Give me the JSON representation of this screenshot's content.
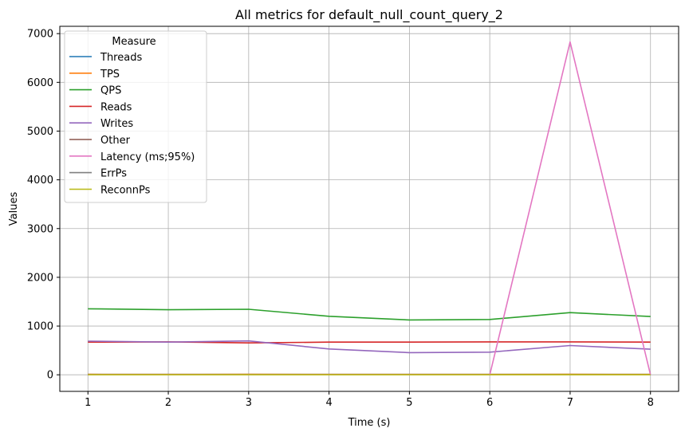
{
  "chart_data": {
    "type": "line",
    "title": "All metrics for default_null_count_query_2",
    "xlabel": "Time (s)",
    "ylabel": "Values",
    "x": [
      1,
      2,
      3,
      4,
      5,
      6,
      7,
      8
    ],
    "xticks": [
      1,
      2,
      3,
      4,
      5,
      6,
      7,
      8
    ],
    "yticks": [
      0,
      1000,
      2000,
      3000,
      4000,
      5000,
      6000,
      7000
    ],
    "xlim": [
      0.65,
      8.35
    ],
    "ylim": [
      -340,
      7150
    ],
    "grid": true,
    "legend_title": "Measure",
    "legend_position": "top-left",
    "series": [
      {
        "name": "Threads",
        "color": "#1f77b4",
        "values": [
          8,
          8,
          8,
          8,
          8,
          8,
          8,
          8
        ]
      },
      {
        "name": "TPS",
        "color": "#ff7f0e",
        "values": [
          10,
          8,
          10,
          9,
          8,
          9,
          10,
          9
        ]
      },
      {
        "name": "QPS",
        "color": "#2ca02c",
        "values": [
          1355,
          1335,
          1345,
          1200,
          1125,
          1135,
          1275,
          1195
        ]
      },
      {
        "name": "Reads",
        "color": "#d62728",
        "values": [
          670,
          675,
          655,
          670,
          670,
          675,
          675,
          670
        ]
      },
      {
        "name": "Writes",
        "color": "#9467bd",
        "values": [
          690,
          670,
          695,
          530,
          455,
          465,
          600,
          525
        ]
      },
      {
        "name": "Other",
        "color": "#8c564b",
        "values": [
          0,
          0,
          0,
          0,
          0,
          0,
          0,
          0
        ]
      },
      {
        "name": "Latency (ms;95%)",
        "color": "#e377c2",
        "values": [
          0,
          0,
          0,
          0,
          0,
          0,
          6830,
          0
        ]
      },
      {
        "name": "ErrPs",
        "color": "#7f7f7f",
        "values": [
          0,
          0,
          0,
          0,
          0,
          0,
          0,
          0
        ]
      },
      {
        "name": "ReconnPs",
        "color": "#bcbd22",
        "values": [
          0,
          0,
          0,
          0,
          0,
          0,
          0,
          0
        ]
      }
    ]
  }
}
